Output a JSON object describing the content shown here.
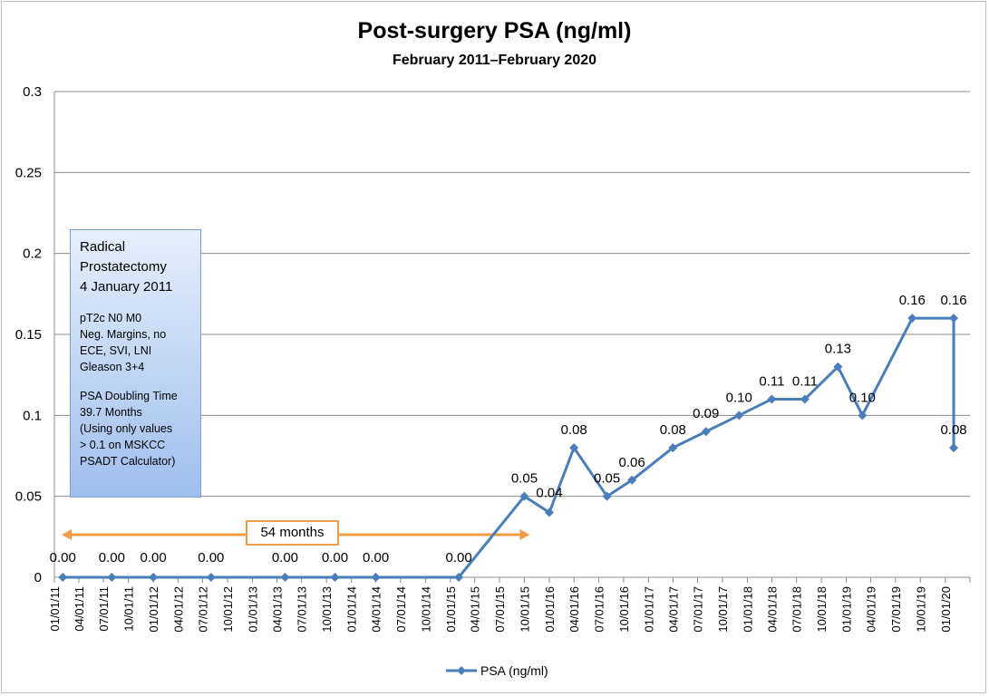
{
  "chart_data": {
    "type": "line",
    "title": "Post-surgery PSA (ng/ml)",
    "subtitle": "February 2011–February 2020",
    "xlabel": "",
    "ylabel": "",
    "ylim": [
      0,
      0.3
    ],
    "yticks": [
      "0",
      "0.05",
      "0.1",
      "0.15",
      "0.2",
      "0.25",
      "0.3"
    ],
    "xlim": [
      "2011-01-01",
      "2020-04-01"
    ],
    "xticks": [
      "01/01/11",
      "04/01/11",
      "07/01/11",
      "10/01/11",
      "01/01/12",
      "04/01/12",
      "07/01/12",
      "10/01/12",
      "01/01/13",
      "04/01/13",
      "07/01/13",
      "10/01/13",
      "01/01/14",
      "04/01/14",
      "07/01/14",
      "10/01/14",
      "01/01/15",
      "04/01/15",
      "07/01/15",
      "10/01/15",
      "01/01/16",
      "04/01/16",
      "07/01/16",
      "10/01/16",
      "01/01/17",
      "04/01/17",
      "07/01/17",
      "10/01/17",
      "01/01/18",
      "04/01/18",
      "07/01/18",
      "10/01/18",
      "01/01/19",
      "04/01/19",
      "07/01/19",
      "10/01/19",
      "01/01/20"
    ],
    "grid": true,
    "legend_position": "bottom",
    "series": [
      {
        "name": "PSA (ng/ml)",
        "color": "#4a7ebb",
        "points": [
          {
            "x": "2011-02-01",
            "y": 0.0,
            "label": "0.00"
          },
          {
            "x": "2011-08-01",
            "y": 0.0,
            "label": "0.00"
          },
          {
            "x": "2012-01-01",
            "y": 0.0,
            "label": "0.00"
          },
          {
            "x": "2012-08-01",
            "y": 0.0,
            "label": "0.00"
          },
          {
            "x": "2013-05-01",
            "y": 0.0,
            "label": "0.00"
          },
          {
            "x": "2013-11-01",
            "y": 0.0,
            "label": "0.00"
          },
          {
            "x": "2014-04-01",
            "y": 0.0,
            "label": "0.00"
          },
          {
            "x": "2015-02-01",
            "y": 0.0,
            "label": "0.00"
          },
          {
            "x": "2015-10-01",
            "y": 0.05,
            "label": "0.05"
          },
          {
            "x": "2016-01-01",
            "y": 0.04,
            "label": "0.04"
          },
          {
            "x": "2016-04-01",
            "y": 0.08,
            "label": "0.08"
          },
          {
            "x": "2016-08-01",
            "y": 0.05,
            "label": "0.05"
          },
          {
            "x": "2016-11-01",
            "y": 0.06,
            "label": "0.06"
          },
          {
            "x": "2017-04-01",
            "y": 0.08,
            "label": "0.08"
          },
          {
            "x": "2017-08-01",
            "y": 0.09,
            "label": "0.09"
          },
          {
            "x": "2017-12-01",
            "y": 0.1,
            "label": "0.10"
          },
          {
            "x": "2018-04-01",
            "y": 0.11,
            "label": "0.11"
          },
          {
            "x": "2018-08-01",
            "y": 0.11,
            "label": "0.11"
          },
          {
            "x": "2018-12-01",
            "y": 0.13,
            "label": "0.13"
          },
          {
            "x": "2019-03-01",
            "y": 0.1,
            "label": "0.10"
          },
          {
            "x": "2019-09-01",
            "y": 0.16,
            "label": "0.16"
          },
          {
            "x": "2020-02-01",
            "y": 0.16,
            "label": "0.16"
          },
          {
            "x": "2020-02-01",
            "y": 0.08,
            "label": "0.08"
          }
        ]
      }
    ],
    "annotations": {
      "info_box": {
        "line1": "Radical",
        "line2": "Prostatectomy",
        "line3": "4 January 2011",
        "line4": "pT2c N0 M0",
        "line5": "Neg. Margins, no",
        "line6": "ECE, SVI, LNI",
        "line7": "Gleason 3+4",
        "line8": "PSA Doubling Time",
        "line9": "39.7 Months",
        "line10": "(Using only values",
        "line11": "> 0.1 on MSKCC",
        "line12": "PSADT Calculator)"
      },
      "span": {
        "label": "54 months",
        "from": "2011-01-01",
        "to": "2015-10-01",
        "color": "#f39c46"
      }
    }
  }
}
